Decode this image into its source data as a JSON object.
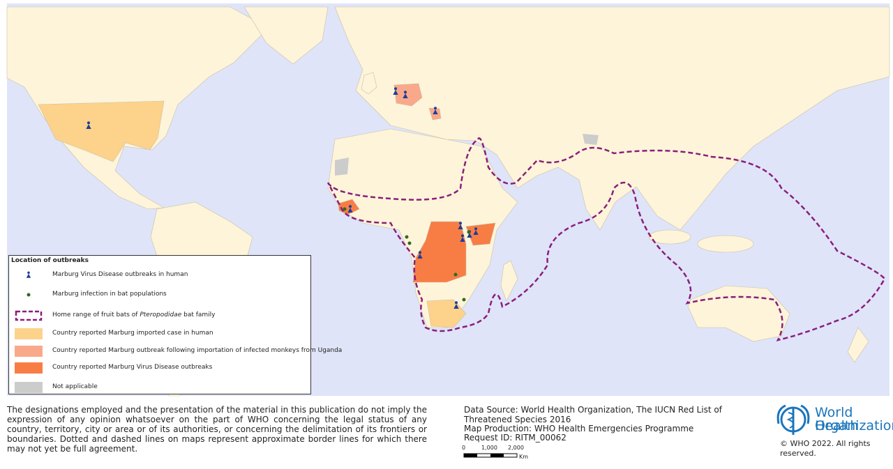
{
  "legend": {
    "title": "Location of outbreaks",
    "items": [
      {
        "label": "Marburg Virus Disease outbreaks in human"
      },
      {
        "label": "Marburg infection in bat populations"
      },
      {
        "label_parts": [
          "Home range of fruit bats of",
          "Pteropodidae",
          "bat family"
        ]
      },
      {
        "label": "Country reported Marburg imported case in human"
      },
      {
        "label": "Country reported Marburg outbreak following importation of infected monkeys from Uganda"
      },
      {
        "label": "Country reported Marburg Virus Disease outbreaks"
      },
      {
        "label": "Not applicable"
      }
    ]
  },
  "footer": {
    "disclaimer": "The designations employed and the presentation of the material in this publication do not imply the expression of any opinion whatsoever on the part of WHO concerning the legal status of any country, territory, city or area or of its authorities, or concerning the delimitation of its frontiers or boundaries. Dotted and dashed lines on maps represent approximate border lines for which there may not yet be full agreement.",
    "data_source": "Data Source: World Health Organization, The IUCN Red List of Threatened Species 2016",
    "map_production": "Map Production: WHO Health Emergencies Programme",
    "request_id": "Request ID: RITM_00062",
    "scale": [
      "0",
      "1,000",
      "2,000",
      "Km"
    ],
    "logo": [
      "World Health",
      "Organization"
    ],
    "copyright": "© WHO 2022. All rights reserved."
  }
}
